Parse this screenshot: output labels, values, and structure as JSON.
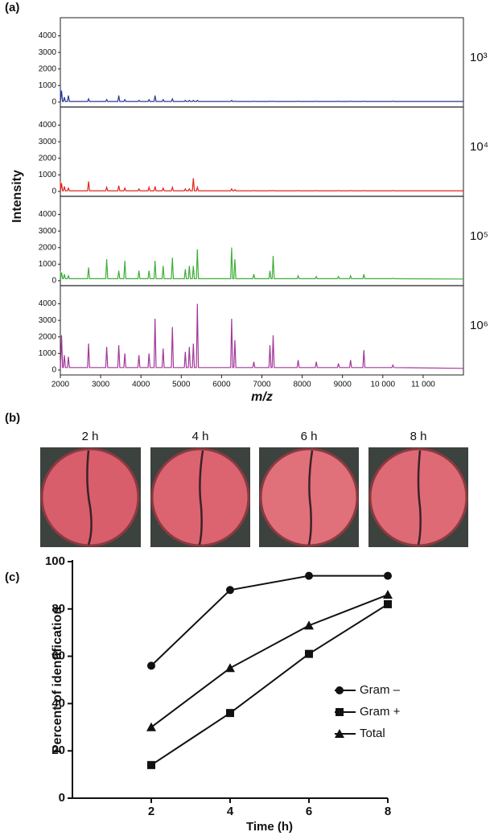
{
  "panel_labels": [
    "(a)",
    "(b)",
    "(c)"
  ],
  "photos": {
    "labels": [
      "2 h",
      "4 h",
      "6 h",
      "8 h"
    ]
  },
  "chart_data": [
    {
      "type": "spectra",
      "y_label": "Intensity",
      "x_label": "m/z",
      "xlim": [
        2000,
        12000
      ],
      "xticks": [
        2000,
        3000,
        4000,
        5000,
        6000,
        7000,
        8000,
        9000,
        {
          "value": 10000,
          "label": "10 000"
        },
        {
          "value": 11000,
          "label": "11 000"
        }
      ],
      "ylim": [
        -200,
        5000
      ],
      "yticks": [
        0,
        1000,
        2000,
        3000,
        4000
      ],
      "x": [
        2000,
        2005,
        2030,
        2055,
        2075,
        2100,
        2125,
        2175,
        2200,
        2225,
        2675,
        2700,
        2725,
        3125,
        3150,
        3175,
        3425,
        3450,
        3475,
        3575,
        3600,
        3625,
        3925,
        3950,
        3975,
        4175,
        4200,
        4225,
        4325,
        4350,
        4375,
        4525,
        4550,
        4575,
        4755,
        4780,
        4805,
        5075,
        5100,
        5125,
        5175,
        5200,
        5225,
        5275,
        5300,
        5325,
        5375,
        5400,
        5425,
        6225,
        6250,
        6275,
        6305,
        6330,
        6355,
        6775,
        6800,
        6825,
        7175,
        7200,
        7225,
        7255,
        7280,
        7305,
        7875,
        7900,
        7925,
        8325,
        8350,
        8375,
        8875,
        8900,
        8925,
        9175,
        9200,
        9225,
        9505,
        9530,
        9555,
        10225,
        10250,
        10275,
        12000
      ],
      "series": [
        {
          "name": "10³",
          "color": "#2e3a92",
          "values": [
            900,
            40,
            700,
            40,
            40,
            300,
            40,
            40,
            400,
            40,
            40,
            200,
            40,
            40,
            150,
            40,
            40,
            400,
            40,
            40,
            150,
            40,
            40,
            100,
            40,
            40,
            150,
            40,
            40,
            400,
            40,
            40,
            150,
            40,
            40,
            200,
            40,
            40,
            100,
            40,
            40,
            100,
            40,
            40,
            100,
            40,
            40,
            100,
            40,
            40,
            100,
            40,
            40,
            60,
            40,
            40,
            60,
            40,
            40,
            60,
            40,
            40,
            60,
            40,
            40,
            60,
            40,
            40,
            60,
            40,
            40,
            60,
            40,
            40,
            60,
            40,
            40,
            60,
            40,
            40,
            60,
            40,
            40
          ]
        },
        {
          "name": "10⁴",
          "color": "#e0261f",
          "values": [
            600,
            40,
            500,
            40,
            40,
            300,
            40,
            40,
            200,
            40,
            40,
            600,
            40,
            40,
            250,
            40,
            40,
            350,
            40,
            40,
            200,
            40,
            40,
            150,
            40,
            40,
            250,
            40,
            40,
            300,
            40,
            40,
            200,
            40,
            40,
            250,
            40,
            40,
            150,
            40,
            40,
            150,
            40,
            40,
            800,
            40,
            40,
            250,
            40,
            40,
            150,
            40,
            40,
            100,
            40,
            40,
            60,
            40,
            40,
            60,
            40,
            40,
            60,
            40,
            40,
            60,
            40,
            40,
            60,
            40,
            40,
            60,
            40,
            40,
            60,
            40,
            40,
            60,
            40,
            40,
            60,
            40,
            40
          ]
        },
        {
          "name": "10⁵",
          "color": "#3fae3a",
          "values": [
            600,
            120,
            500,
            120,
            120,
            400,
            120,
            120,
            300,
            120,
            120,
            800,
            120,
            120,
            1300,
            120,
            120,
            600,
            120,
            120,
            1200,
            120,
            120,
            600,
            120,
            120,
            600,
            120,
            120,
            1200,
            120,
            120,
            900,
            120,
            120,
            1400,
            120,
            120,
            700,
            120,
            120,
            900,
            120,
            120,
            900,
            120,
            120,
            1900,
            120,
            120,
            2000,
            120,
            120,
            1300,
            120,
            120,
            400,
            120,
            120,
            600,
            120,
            120,
            1500,
            120,
            120,
            300,
            120,
            120,
            250,
            120,
            120,
            250,
            120,
            120,
            300,
            120,
            120,
            400,
            120,
            120,
            150,
            120,
            100
          ]
        },
        {
          "name": "10⁶",
          "color": "#a2399a",
          "values": [
            600,
            150,
            2100,
            150,
            150,
            900,
            150,
            150,
            800,
            150,
            150,
            1600,
            150,
            150,
            1400,
            150,
            150,
            1500,
            150,
            150,
            1000,
            150,
            150,
            900,
            150,
            150,
            1000,
            150,
            150,
            3100,
            150,
            150,
            1300,
            150,
            150,
            2600,
            150,
            150,
            1100,
            150,
            150,
            1400,
            150,
            150,
            1600,
            150,
            150,
            4000,
            150,
            150,
            3100,
            150,
            150,
            1800,
            150,
            150,
            500,
            150,
            150,
            1500,
            150,
            150,
            2100,
            150,
            150,
            600,
            150,
            150,
            500,
            150,
            150,
            400,
            150,
            150,
            600,
            150,
            150,
            1200,
            150,
            150,
            300,
            150,
            100
          ]
        }
      ]
    },
    {
      "type": "line",
      "x_label": "Time (h)",
      "y_label": "Percent of identification",
      "x": [
        2,
        4,
        6,
        8
      ],
      "xlim": [
        0,
        8
      ],
      "xticks": [
        2,
        4,
        6,
        8
      ],
      "ylim": [
        0,
        100
      ],
      "yticks": [
        0,
        20,
        40,
        60,
        80,
        100
      ],
      "series": [
        {
          "name": "Gram –",
          "color": "#111111",
          "marker": "circle",
          "values": [
            56,
            88,
            94,
            94
          ]
        },
        {
          "name": "Gram +",
          "color": "#111111",
          "marker": "square",
          "values": [
            14,
            36,
            61,
            82
          ]
        },
        {
          "name": "Total",
          "color": "#111111",
          "marker": "triangle",
          "values": [
            30,
            55,
            73,
            86
          ]
        }
      ]
    }
  ]
}
